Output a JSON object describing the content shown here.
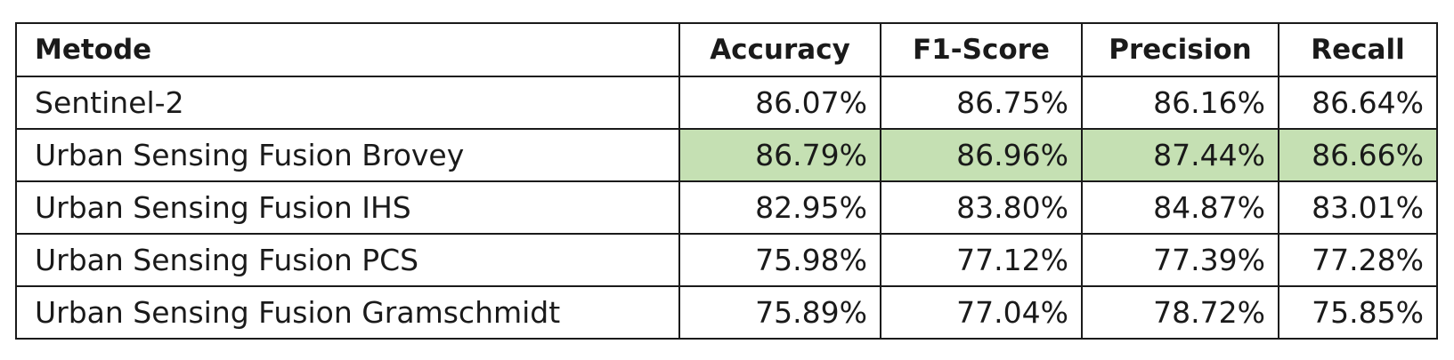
{
  "table": {
    "headers": {
      "method": "Metode",
      "accuracy": "Accuracy",
      "f1": "F1-Score",
      "precision": "Precision",
      "recall": "Recall"
    },
    "highlight_color": "#c5e0b3",
    "rows": [
      {
        "method": "Sentinel-2",
        "accuracy": "86.07%",
        "f1": "86.75%",
        "precision": "86.16%",
        "recall": "86.64%",
        "highlighted": false
      },
      {
        "method": "Urban Sensing Fusion Brovey",
        "accuracy": "86.79%",
        "f1": "86.96%",
        "precision": "87.44%",
        "recall": "86.66%",
        "highlighted": true
      },
      {
        "method": "Urban Sensing Fusion IHS",
        "accuracy": "82.95%",
        "f1": "83.80%",
        "precision": "84.87%",
        "recall": "83.01%",
        "highlighted": false
      },
      {
        "method": "Urban Sensing Fusion PCS",
        "accuracy": "75.98%",
        "f1": "77.12%",
        "precision": "77.39%",
        "recall": "77.28%",
        "highlighted": false
      },
      {
        "method": "Urban Sensing Fusion Gramschmidt",
        "accuracy": "75.89%",
        "f1": "77.04%",
        "precision": "78.72%",
        "recall": "75.85%",
        "highlighted": false
      }
    ]
  }
}
